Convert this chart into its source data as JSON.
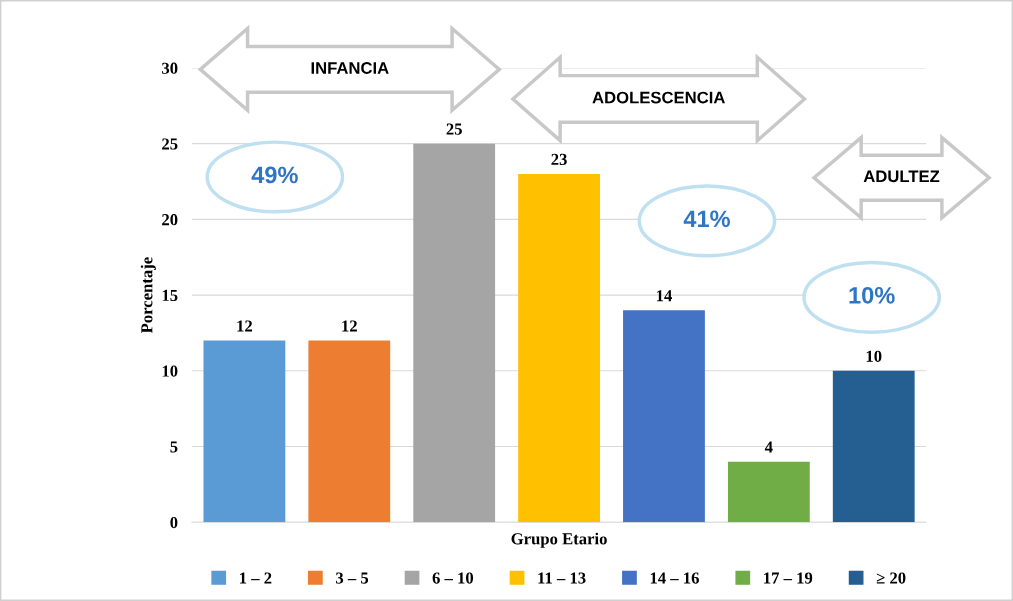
{
  "chart_data": {
    "type": "bar",
    "categories": [
      null,
      null,
      null,
      null,
      null,
      null,
      null
    ],
    "series": [
      {
        "name": "1 – 2",
        "color": "#5b9bd5",
        "values": [
          12,
          null,
          null,
          null,
          null,
          null,
          null
        ]
      },
      {
        "name": "3 – 5",
        "color": "#ed7d31",
        "values": [
          null,
          12,
          null,
          null,
          null,
          null,
          null
        ]
      },
      {
        "name": "6 – 10",
        "color": "#a5a5a5",
        "values": [
          null,
          null,
          25,
          null,
          null,
          null,
          null
        ]
      },
      {
        "name": "11 – 13",
        "color": "#ffc000",
        "values": [
          null,
          null,
          null,
          23,
          null,
          null,
          null
        ]
      },
      {
        "name": "14 – 16",
        "color": "#4472c4",
        "values": [
          null,
          null,
          null,
          null,
          14,
          null,
          null
        ]
      },
      {
        "name": "17 – 19",
        "color": "#70ad47",
        "values": [
          null,
          null,
          null,
          null,
          null,
          4,
          null
        ]
      },
      {
        "name": "≥ 20",
        "color": "#255e91",
        "values": [
          null,
          null,
          null,
          null,
          null,
          null,
          10
        ]
      }
    ],
    "xlabel": "Grupo Etario",
    "ylabel": "Porcentaje",
    "ylim": [
      0,
      30
    ],
    "yticks": [
      0,
      5,
      10,
      15,
      20,
      25,
      30
    ],
    "grid": "y",
    "legend": "bottom",
    "data_labels": true,
    "annotations": [
      "INFANCIA",
      "ADOLESCENCIA",
      "ADULTEZ",
      "49%",
      "41%",
      "10%"
    ]
  }
}
